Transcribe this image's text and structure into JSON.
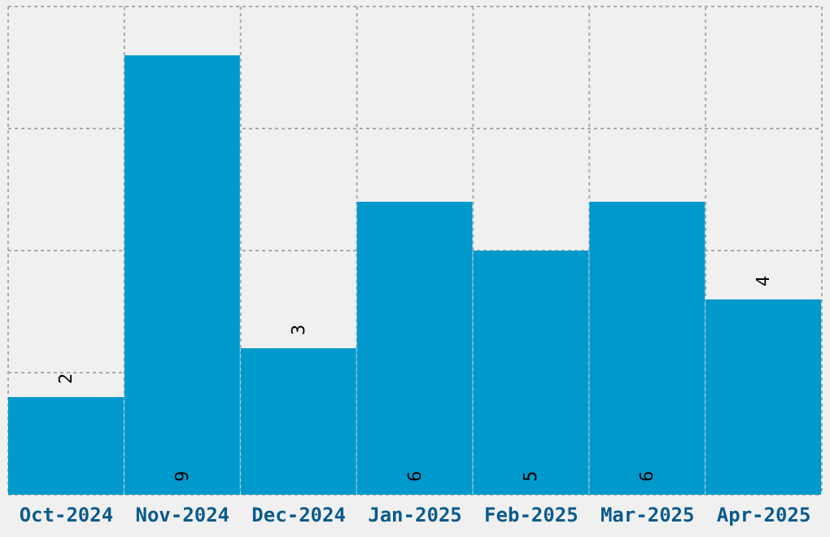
{
  "chart_data": {
    "type": "bar",
    "categories": [
      "Oct-2024",
      "Nov-2024",
      "Dec-2024",
      "Jan-2025",
      "Feb-2025",
      "Mar-2025",
      "Apr-2025"
    ],
    "values": [
      2,
      9,
      3,
      6,
      5,
      6,
      4
    ],
    "color": "#0099cc",
    "ylim": [
      0,
      10
    ],
    "yticks": [
      {
        "value": 0,
        "label": null
      },
      {
        "value": 2.5,
        "label": null
      },
      {
        "value": 5,
        "label": null
      },
      {
        "value": 7.5,
        "label": null
      },
      {
        "value": 10,
        "label": null
      }
    ],
    "grid": true,
    "tick_labels": "x",
    "data_labels": true
  }
}
